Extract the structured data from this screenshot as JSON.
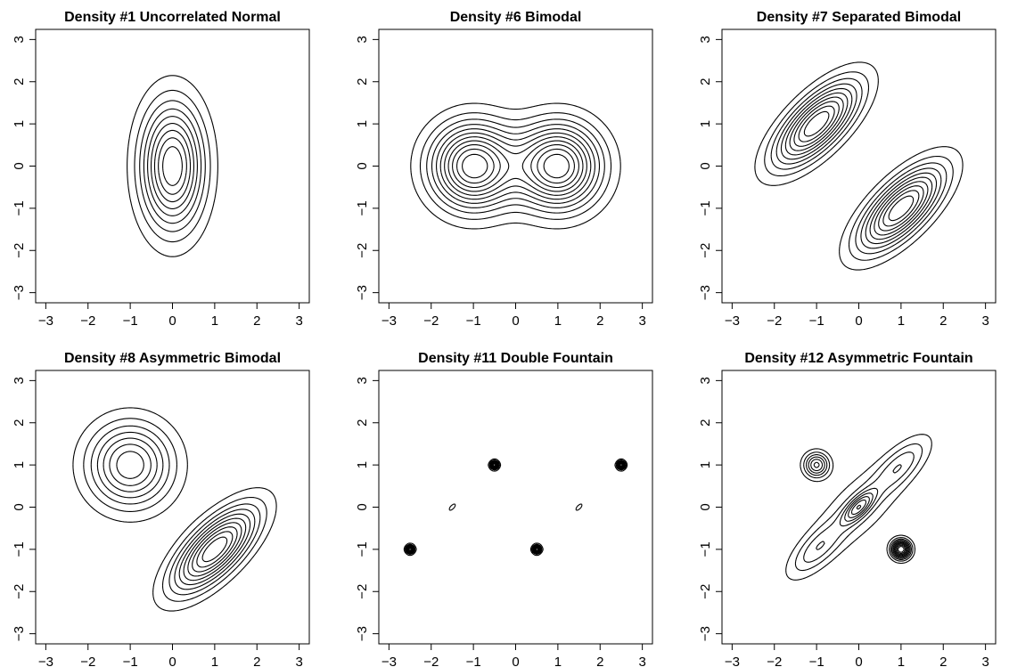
{
  "colors": {
    "background": "#ffffff",
    "ink": "#000000"
  },
  "chart_data": [
    {
      "type": "contour",
      "title": "Density #1 Uncorrelated Normal",
      "xlim": [
        -3,
        3
      ],
      "ylim": [
        -3,
        3
      ],
      "x_ticks": [
        "−3",
        "−2",
        "−1",
        "0",
        "1",
        "2",
        "3"
      ],
      "y_ticks": [
        "−3",
        "−2",
        "−1",
        "0",
        "1",
        "2",
        "3"
      ],
      "levels": 9,
      "components": [
        {
          "weight": 1,
          "mean": [
            0,
            0
          ],
          "sd": [
            0.5,
            1
          ],
          "rho": 0
        }
      ]
    },
    {
      "type": "contour",
      "title": "Density #6 Bimodal",
      "xlim": [
        -3,
        3
      ],
      "ylim": [
        -3,
        3
      ],
      "x_ticks": [
        "−3",
        "−2",
        "−1",
        "0",
        "1",
        "2",
        "3"
      ],
      "y_ticks": [
        "−3",
        "−2",
        "−1",
        "0",
        "1",
        "2",
        "3"
      ],
      "levels": 11,
      "components": [
        {
          "weight": 0.5,
          "mean": [
            -1,
            0
          ],
          "sd": [
            0.667,
            0.667
          ],
          "rho": 0
        },
        {
          "weight": 0.5,
          "mean": [
            1,
            0
          ],
          "sd": [
            0.667,
            0.667
          ],
          "rho": 0
        }
      ]
    },
    {
      "type": "contour",
      "title": "Density #7 Separated Bimodal",
      "xlim": [
        -3,
        3
      ],
      "ylim": [
        -3,
        3
      ],
      "x_ticks": [
        "−3",
        "−2",
        "−1",
        "0",
        "1",
        "2",
        "3"
      ],
      "y_ticks": [
        "−3",
        "−2",
        "−1",
        "0",
        "1",
        "2",
        "3"
      ],
      "levels": 10,
      "components": [
        {
          "weight": 0.5,
          "mean": [
            -1,
            1
          ],
          "sd": [
            0.667,
            0.667
          ],
          "rho": 0.7
        },
        {
          "weight": 0.5,
          "mean": [
            1,
            -1
          ],
          "sd": [
            0.667,
            0.667
          ],
          "rho": 0.7
        }
      ]
    },
    {
      "type": "contour",
      "title": "Density #8 Asymmetric Bimodal",
      "xlim": [
        -3,
        3
      ],
      "ylim": [
        -3,
        3
      ],
      "x_ticks": [
        "−3",
        "−2",
        "−1",
        "0",
        "1",
        "2",
        "3"
      ],
      "y_ticks": [
        "−3",
        "−2",
        "−1",
        "0",
        "1",
        "2",
        "3"
      ],
      "levels": 10,
      "components": [
        {
          "weight": 0.5,
          "mean": [
            -1,
            1
          ],
          "sd": [
            0.667,
            0.667
          ],
          "rho": 0
        },
        {
          "weight": 0.5,
          "mean": [
            1,
            -1
          ],
          "sd": [
            0.667,
            0.667
          ],
          "rho": 0.7
        }
      ]
    },
    {
      "type": "contour",
      "title": "Density #11 Double Fountain",
      "xlim": [
        -3,
        3
      ],
      "ylim": [
        -3,
        3
      ],
      "x_ticks": [
        "−3",
        "−2",
        "−1",
        "0",
        "1",
        "2",
        "3"
      ],
      "y_ticks": [
        "−3",
        "−2",
        "−1",
        "0",
        "1",
        "2",
        "3"
      ],
      "levels": 10,
      "components": [
        {
          "weight": 0.35,
          "mean": [
            -1.5,
            0
          ],
          "sd": [
            0.667,
            0.667
          ],
          "rho": 0.7
        },
        {
          "weight": 0.35,
          "mean": [
            1.5,
            0
          ],
          "sd": [
            0.667,
            0.667
          ],
          "rho": 0.7
        },
        {
          "weight": 0.12,
          "mean": [
            0,
            0
          ],
          "sd": [
            0.333,
            0.333
          ],
          "rho": 0
        },
        {
          "weight": 0.045,
          "mean": [
            -2.5,
            -1
          ],
          "sd": [
            0.06,
            0.06
          ],
          "rho": 0
        },
        {
          "weight": 0.045,
          "mean": [
            -0.5,
            1
          ],
          "sd": [
            0.06,
            0.06
          ],
          "rho": 0
        },
        {
          "weight": 0.045,
          "mean": [
            0.5,
            -1
          ],
          "sd": [
            0.06,
            0.06
          ],
          "rho": 0
        },
        {
          "weight": 0.045,
          "mean": [
            2.5,
            1
          ],
          "sd": [
            0.06,
            0.06
          ],
          "rho": 0
        }
      ]
    },
    {
      "type": "contour",
      "title": "Density #12 Asymmetric Fountain",
      "xlim": [
        -3,
        3
      ],
      "ylim": [
        -3,
        3
      ],
      "x_ticks": [
        "−3",
        "−2",
        "−1",
        "0",
        "1",
        "2",
        "3"
      ],
      "y_ticks": [
        "−3",
        "−2",
        "−1",
        "0",
        "1",
        "2",
        "3"
      ],
      "levels": 10,
      "components": [
        {
          "weight": 0.3,
          "mean": [
            0,
            0
          ],
          "sd": [
            0.667,
            0.667
          ],
          "rho": 0.6
        },
        {
          "weight": 0.2,
          "mean": [
            1,
            1
          ],
          "sd": [
            0.45,
            0.45
          ],
          "rho": 0.7
        },
        {
          "weight": 0.2,
          "mean": [
            -1,
            -1
          ],
          "sd": [
            0.45,
            0.45
          ],
          "rho": 0.7
        },
        {
          "weight": 0.1,
          "mean": [
            0,
            0
          ],
          "sd": [
            0.25,
            0.25
          ],
          "rho": 0.7
        },
        {
          "weight": 0.1,
          "mean": [
            -1,
            1
          ],
          "sd": [
            0.2,
            0.2
          ],
          "rho": 0
        },
        {
          "weight": 0.1,
          "mean": [
            1,
            -1
          ],
          "sd": [
            0.15,
            0.15
          ],
          "rho": 0
        }
      ]
    }
  ]
}
